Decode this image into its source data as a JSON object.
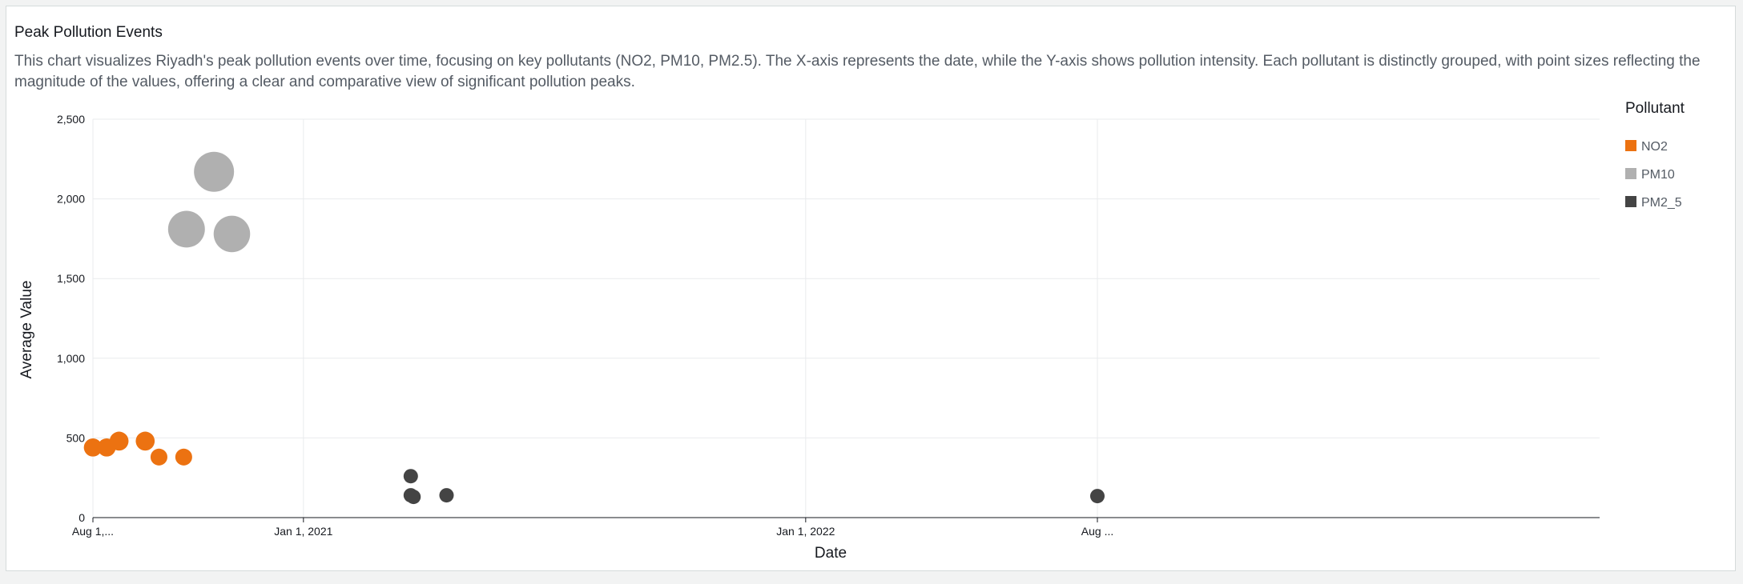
{
  "card": {
    "title": "Peak Pollution Events",
    "description": "This chart visualizes Riyadh's peak pollution events over time, focusing on key pollutants (NO2, PM10, PM2.5). The X-axis represents the date, while the Y-axis shows pollution intensity. Each pollutant is distinctly grouped, with point sizes reflecting the magnitude of the values, offering a clear and comparative view of significant pollution peaks."
  },
  "chart_data": {
    "type": "scatter",
    "xlabel": "Date",
    "ylabel": "Average Value",
    "x_type": "date",
    "xlim": [
      "2020-08-01",
      "2023-08-01"
    ],
    "ylim": [
      0,
      2500
    ],
    "y_ticks": [
      0,
      500,
      1000,
      1500,
      2000,
      2500
    ],
    "y_tick_labels": [
      "0",
      "500",
      "1,000",
      "1,500",
      "2,000",
      "2,500"
    ],
    "x_ticks": [
      "2020-08-01",
      "2021-01-01",
      "2022-01-01",
      "2022-08-01"
    ],
    "x_tick_labels": [
      "Aug 1,...",
      "Jan 1, 2021",
      "Jan 1, 2022",
      "Aug ..."
    ],
    "grid": true,
    "point_size_encodes": "value",
    "legend": {
      "title": "Pollutant",
      "placement": "right"
    },
    "series": [
      {
        "name": "NO2",
        "color": "#ec7211",
        "points": [
          {
            "x": "2020-08-01",
            "y": 440
          },
          {
            "x": "2020-08-11",
            "y": 440
          },
          {
            "x": "2020-08-20",
            "y": 480
          },
          {
            "x": "2020-09-08",
            "y": 480
          },
          {
            "x": "2020-09-18",
            "y": 380
          },
          {
            "x": "2020-10-06",
            "y": 380
          }
        ]
      },
      {
        "name": "PM10",
        "color": "#b0b0b0",
        "points": [
          {
            "x": "2020-10-08",
            "y": 1810
          },
          {
            "x": "2020-10-28",
            "y": 2170
          },
          {
            "x": "2020-11-10",
            "y": 1780
          }
        ]
      },
      {
        "name": "PM2_5",
        "color": "#444444",
        "points": [
          {
            "x": "2021-03-20",
            "y": 260
          },
          {
            "x": "2021-03-20",
            "y": 140
          },
          {
            "x": "2021-03-22",
            "y": 130
          },
          {
            "x": "2021-04-15",
            "y": 140
          },
          {
            "x": "2022-08-01",
            "y": 135
          }
        ]
      }
    ]
  }
}
